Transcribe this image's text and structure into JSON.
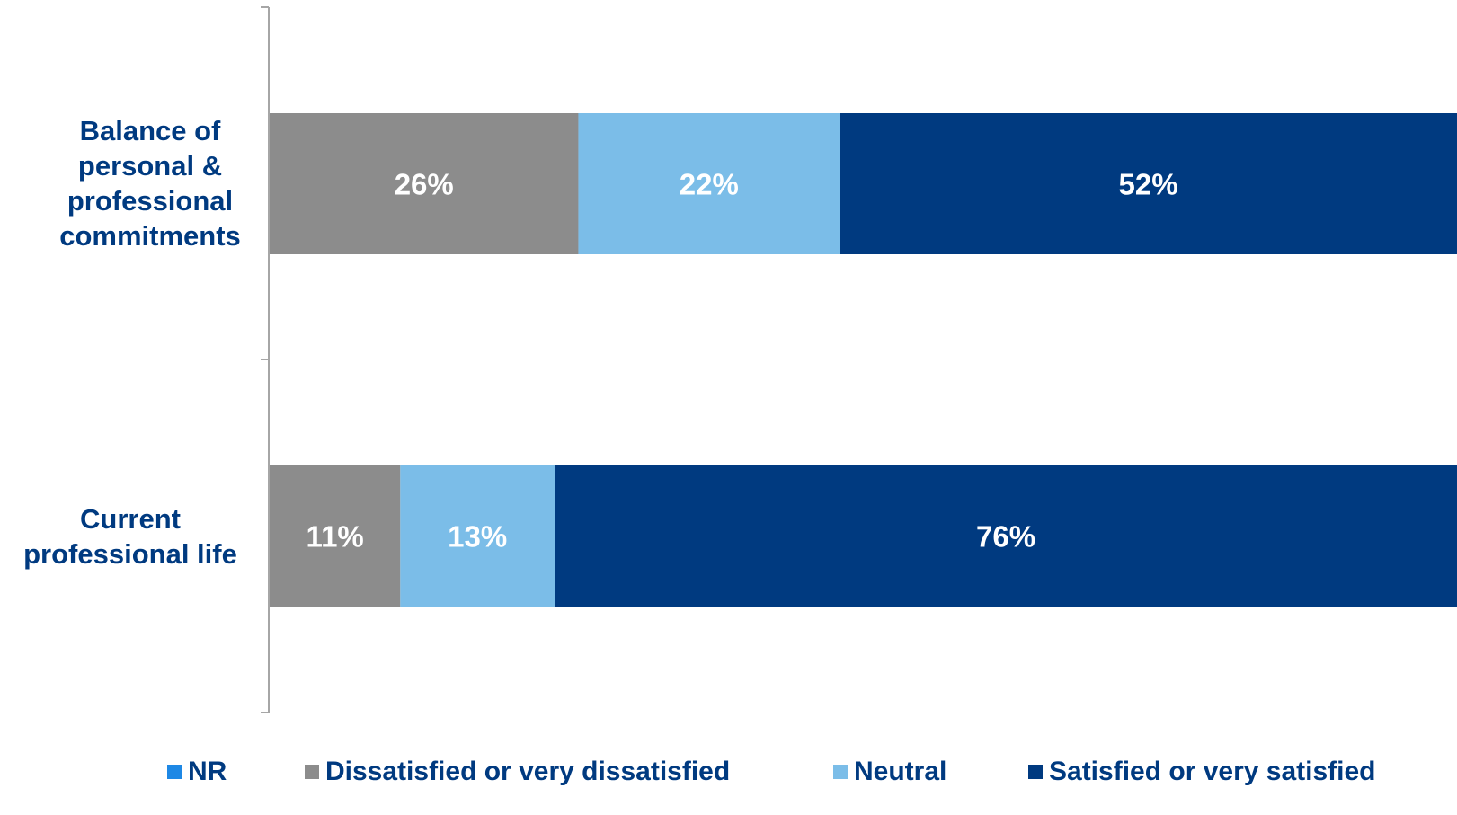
{
  "chart_data": {
    "type": "bar",
    "orientation": "horizontal",
    "stacked": true,
    "categories": [
      "Balance of personal & professional commitments",
      "Current professional life"
    ],
    "category_lines": [
      [
        "Balance of",
        "personal &",
        "professional",
        "commitments"
      ],
      [
        "Current",
        "professional life"
      ]
    ],
    "series": [
      {
        "name": "NR",
        "color": "#1e88e5",
        "values": [
          0,
          0
        ],
        "labels": [
          "",
          ""
        ]
      },
      {
        "name": "Dissatisfied or very dissatisfied",
        "color": "#8c8c8c",
        "values": [
          26,
          11
        ],
        "labels": [
          "26%",
          "11%"
        ]
      },
      {
        "name": "Neutral",
        "color": "#7bbde8",
        "values": [
          22,
          13
        ],
        "labels": [
          "22%",
          "13%"
        ]
      },
      {
        "name": "Satisfied or very satisfied",
        "color": "#003a80",
        "values": [
          52,
          76
        ],
        "labels": [
          "52%",
          "76%"
        ]
      }
    ],
    "xlim": [
      0,
      100
    ],
    "legend_position": "bottom",
    "grid": false
  }
}
